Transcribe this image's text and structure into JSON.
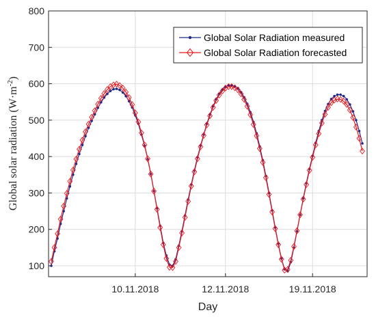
{
  "chart_data": {
    "type": "line",
    "xlabel": "Day",
    "ylabel": "Global solar radiation (W·m",
    "ylabel_superscript": "-2",
    "ylabel_close": ")",
    "ylim": [
      70,
      800
    ],
    "yticks": [
      100,
      200,
      300,
      400,
      500,
      600,
      700,
      800
    ],
    "x_range": [
      0,
      100
    ],
    "xticks": [
      {
        "x": 27,
        "label": "10.11.2018"
      },
      {
        "x": 56,
        "label": "12.11.2018"
      },
      {
        "x": 84,
        "label": "19.11.2018"
      }
    ],
    "grid": true,
    "legend_position": "top-right",
    "series": [
      {
        "name": "Global Solar Radiation measured",
        "color": "#1f2a8a",
        "marker": "dot",
        "x": [
          0,
          1,
          2,
          3,
          4,
          5,
          6,
          7,
          8,
          9,
          10,
          11,
          12,
          13,
          14,
          15,
          16,
          17,
          18,
          19,
          20,
          21,
          22,
          23,
          24,
          25,
          26,
          27,
          28,
          29,
          30,
          31,
          32,
          33,
          34,
          35,
          36,
          37,
          38,
          39,
          40,
          41,
          42,
          43,
          44,
          45,
          46,
          47,
          48,
          49,
          50,
          51,
          52,
          53,
          54,
          55,
          56,
          57,
          58,
          59,
          60,
          61,
          62,
          63,
          64,
          65,
          66,
          67,
          68,
          69,
          70,
          71,
          72,
          73,
          74,
          75,
          76,
          77,
          78,
          79,
          80,
          81,
          82,
          83,
          84,
          85,
          86,
          87,
          88,
          89,
          90,
          91,
          92,
          93,
          94,
          95,
          96,
          97,
          98,
          99,
          100
        ],
        "y": [
          100,
          140,
          175,
          215,
          250,
          285,
          318,
          350,
          380,
          407,
          432,
          456,
          479,
          498,
          516,
          534,
          549,
          562,
          572,
          580,
          585,
          586,
          583,
          576,
          566,
          552,
          535,
          513,
          490,
          460,
          430,
          393,
          352,
          305,
          258,
          210,
          163,
          128,
          103,
          100,
          118,
          155,
          195,
          238,
          282,
          323,
          362,
          398,
          430,
          460,
          490,
          515,
          538,
          557,
          572,
          584,
          592,
          596,
          596,
          593,
          588,
          577,
          563,
          545,
          522,
          495,
          464,
          428,
          390,
          347,
          300,
          252,
          205,
          160,
          120,
          90,
          85,
          110,
          150,
          195,
          240,
          285,
          327,
          366,
          402,
          438,
          470,
          500,
          525,
          544,
          558,
          566,
          570,
          570,
          566,
          557,
          543,
          524,
          500,
          470,
          436
        ]
      },
      {
        "name": "Global Solar Radiation forecasted",
        "color": "#e8171e",
        "marker": "diamond",
        "x": [
          0,
          1,
          2,
          3,
          4,
          5,
          6,
          7,
          8,
          9,
          10,
          11,
          12,
          13,
          14,
          15,
          16,
          17,
          18,
          19,
          20,
          21,
          22,
          23,
          24,
          25,
          26,
          27,
          28,
          29,
          30,
          31,
          32,
          33,
          34,
          35,
          36,
          37,
          38,
          39,
          40,
          41,
          42,
          43,
          44,
          45,
          46,
          47,
          48,
          49,
          50,
          51,
          52,
          53,
          54,
          55,
          56,
          57,
          58,
          59,
          60,
          61,
          62,
          63,
          64,
          65,
          66,
          67,
          68,
          69,
          70,
          71,
          72,
          73,
          74,
          75,
          76,
          77,
          78,
          79,
          80,
          81,
          82,
          83,
          84,
          85,
          86,
          87,
          88,
          89,
          90,
          91,
          92,
          93,
          94,
          95,
          96,
          97,
          98,
          99,
          100
        ],
        "y": [
          112,
          150,
          188,
          228,
          264,
          299,
          332,
          363,
          393,
          420,
          445,
          468,
          489,
          508,
          526,
          544,
          560,
          573,
          584,
          592,
          597,
          599,
          595,
          588,
          577,
          562,
          543,
          520,
          495,
          465,
          432,
          394,
          352,
          305,
          255,
          205,
          158,
          120,
          96,
          95,
          112,
          150,
          190,
          233,
          277,
          319,
          358,
          394,
          427,
          458,
          487,
          512,
          535,
          554,
          569,
          580,
          588,
          592,
          592,
          589,
          583,
          572,
          557,
          538,
          515,
          488,
          457,
          422,
          384,
          342,
          296,
          248,
          202,
          158,
          118,
          88,
          90,
          115,
          153,
          196,
          240,
          283,
          323,
          362,
          398,
          432,
          463,
          492,
          516,
          535,
          548,
          555,
          558,
          557,
          552,
          543,
          528,
          507,
          481,
          450,
          415
        ]
      }
    ]
  }
}
